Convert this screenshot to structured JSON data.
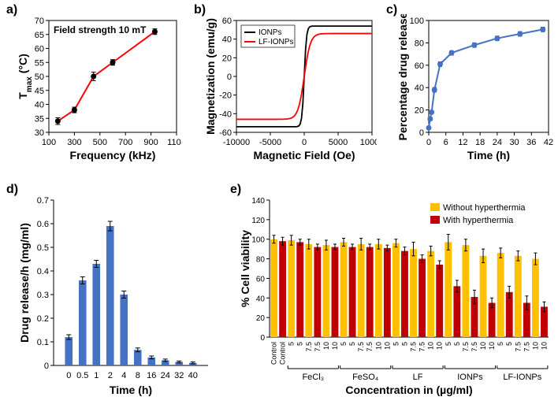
{
  "panel_a": {
    "label": "a)",
    "title": "Field strength 10 mT",
    "xlabel": "Frequency (kHz)",
    "ylabel": "Tmax (°C)",
    "xlim": [
      100,
      1100
    ],
    "xtick_step": 200,
    "ylim": [
      30,
      70
    ],
    "ytick_step": 5,
    "x": [
      170,
      300,
      450,
      600,
      930
    ],
    "y": [
      34,
      38,
      50,
      55,
      66
    ],
    "yerr": [
      1.2,
      1.0,
      1.5,
      1.0,
      1.0
    ],
    "line_color": "#ff0000",
    "marker_color": "#000000",
    "axis_color": "#000000",
    "tick_fontsize": 11,
    "label_fontsize": 14,
    "title_fontsize": 12
  },
  "panel_b": {
    "label": "b)",
    "xlabel": "Magnetic Field (Oe)",
    "ylabel": "Magnetization (emu/g)",
    "xlim": [
      -10000,
      10000
    ],
    "xtick_step": 5000,
    "ylim": [
      -60,
      60
    ],
    "ytick_step": 20,
    "legend": [
      "IONPs",
      "LF-IONPs"
    ],
    "series": [
      {
        "name": "IONPs",
        "color": "#000000",
        "sat": 54,
        "slope": 0.003
      },
      {
        "name": "LF-IONPs",
        "color": "#ff0000",
        "sat": 46,
        "slope": 0.0011
      }
    ],
    "label_fontsize": 14,
    "tick_fontsize": 11,
    "legend_fontsize": 10
  },
  "panel_c": {
    "label": "c)",
    "xlabel": "Time (h)",
    "ylabel": "Percentage drug release",
    "xlim": [
      0,
      42
    ],
    "xtick_step": 6,
    "ylim": [
      0,
      100
    ],
    "ytick_step": 20,
    "x": [
      0,
      0.5,
      1,
      2,
      4,
      8,
      16,
      24,
      32,
      40
    ],
    "y": [
      4,
      12,
      18,
      38,
      61,
      71,
      78,
      84,
      88,
      92
    ],
    "yerr": [
      1.5,
      1.5,
      1.5,
      2,
      2,
      2,
      2,
      2,
      2,
      2
    ],
    "line_color": "#4472c4",
    "marker_color": "#4472c4",
    "label_fontsize": 14,
    "tick_fontsize": 11
  },
  "panel_d": {
    "label": "d)",
    "xlabel": "Time (h)",
    "ylabel": "Drug release/h (mg/ml)",
    "xlim_pad": 0.6,
    "ylim": [
      0,
      0.7
    ],
    "ytick_step": 0.1,
    "categories": [
      "0",
      "0.5",
      "1",
      "2",
      "4",
      "8",
      "16",
      "24",
      "32",
      "40"
    ],
    "values": [
      0.12,
      0.36,
      0.43,
      0.59,
      0.3,
      0.066,
      0.034,
      0.022,
      0.015,
      0.011
    ],
    "yerr": [
      0.01,
      0.015,
      0.015,
      0.02,
      0.015,
      0.008,
      0.006,
      0.005,
      0.004,
      0.004
    ],
    "bar_color": "#4472c4",
    "bar_width": 0.55,
    "label_fontsize": 14,
    "tick_fontsize": 11
  },
  "panel_e": {
    "label": "e)",
    "xlabel": "Concentration in (µg/ml)",
    "ylabel": "% Cell viability",
    "ylim": [
      0,
      140
    ],
    "ytick_step": 20,
    "legend": [
      "Without hyperthermia",
      "With hyperthermia"
    ],
    "colors": [
      "#ffc000",
      "#c00000"
    ],
    "groups": [
      "FeCl₃",
      "FeSO₄",
      "LF",
      "IONPs",
      "LF-IONPs"
    ],
    "concs": [
      "5",
      "5",
      "7.5",
      "7.5",
      "10",
      "10"
    ],
    "control_labels": [
      "Control",
      "Control"
    ],
    "control_vals": [
      100,
      98
    ],
    "control_err": [
      4,
      4
    ],
    "data": {
      "FeCl3": {
        "without": [
          99,
          95,
          94
        ],
        "with": [
          97,
          92,
          92
        ],
        "err_wo": [
          5,
          5,
          5
        ],
        "err_wi": [
          3,
          3,
          3
        ]
      },
      "FeSO4": {
        "without": [
          97,
          95,
          95
        ],
        "with": [
          92,
          92,
          91
        ],
        "err_wo": [
          4,
          6,
          5
        ],
        "err_wi": [
          3,
          3,
          3
        ]
      },
      "LF": {
        "without": [
          96,
          90,
          88
        ],
        "with": [
          88,
          80,
          74
        ],
        "err_wo": [
          4,
          7,
          5
        ],
        "err_wi": [
          4,
          4,
          4
        ]
      },
      "IONPs": {
        "without": [
          97,
          94,
          83
        ],
        "with": [
          52,
          41,
          35
        ],
        "err_wo": [
          8,
          6,
          7
        ],
        "err_wi": [
          6,
          7,
          5
        ]
      },
      "LF-IONPs": {
        "without": [
          86,
          83,
          80
        ],
        "with": [
          46,
          35,
          31
        ],
        "err_wo": [
          5,
          5,
          6
        ],
        "err_wi": [
          6,
          7,
          5
        ]
      }
    },
    "label_fontsize": 14,
    "tick_fontsize": 10,
    "legend_fontsize": 11
  }
}
